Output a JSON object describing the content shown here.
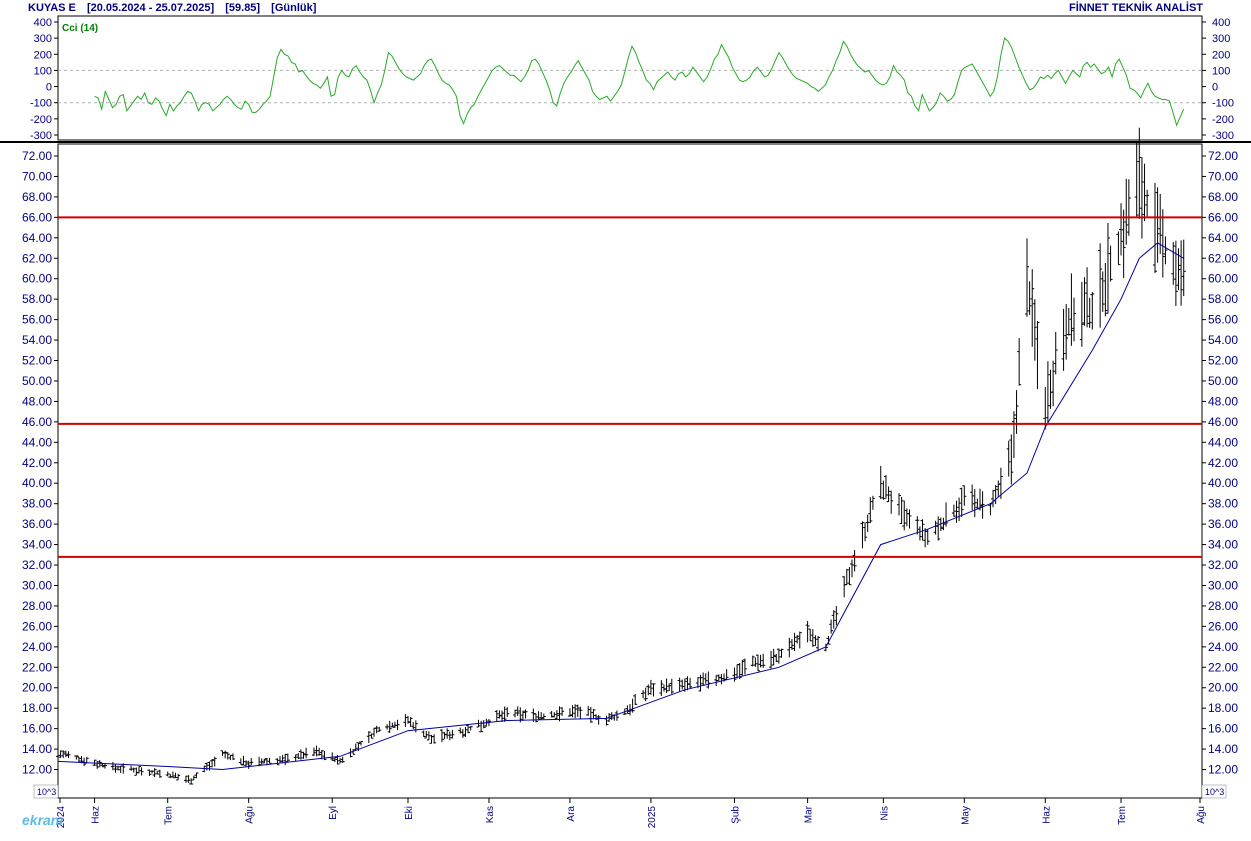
{
  "header": {
    "symbol": "KUYAS E",
    "range": "[20.05.2024 - 25.07.2025]",
    "last": "[59.85]",
    "period": "[Günlük]",
    "provider": "FİNNET TEKNİK ANALİST"
  },
  "watermark": "ekranı",
  "colors": {
    "axis_text": "#000080",
    "cci_line": "#2aa82a",
    "moving_average": "#0000a0",
    "bars": "#000000",
    "support_lines": "#d00000",
    "grid": "#b0b0b0"
  },
  "chart_data": [
    {
      "type": "line",
      "title": "Cci (14)",
      "ylim": [
        -300,
        400
      ],
      "y_ticks": [
        400,
        300,
        200,
        100,
        0,
        -100,
        -200,
        -300
      ],
      "y_tick_labels": [
        "400",
        "300",
        "200",
        "100",
        "0",
        "-100",
        "-200",
        "-300"
      ],
      "grid": true,
      "series": [
        {
          "name": "Cci (14)",
          "x_start": "2024-06-03",
          "x_end": "2025-07-25",
          "values": [
            -60,
            -70,
            -140,
            -30,
            -80,
            -130,
            -110,
            -60,
            -50,
            -150,
            -120,
            -90,
            -60,
            -80,
            -40,
            -100,
            -110,
            -70,
            -90,
            -140,
            -180,
            -110,
            -150,
            -120,
            -100,
            -60,
            -30,
            -40,
            -90,
            -150,
            -110,
            -100,
            -110,
            -150,
            -130,
            -110,
            -80,
            -60,
            -80,
            -110,
            -130,
            -140,
            -90,
            -110,
            -160,
            -160,
            -140,
            -110,
            -90,
            -60,
            60,
            180,
            230,
            200,
            190,
            150,
            140,
            90,
            100,
            70,
            40,
            20,
            10,
            -10,
            20,
            60,
            -60,
            -50,
            60,
            100,
            70,
            60,
            110,
            130,
            90,
            60,
            40,
            -20,
            -100,
            -40,
            10,
            100,
            210,
            190,
            150,
            110,
            80,
            60,
            50,
            40,
            60,
            80,
            130,
            160,
            170,
            130,
            80,
            40,
            20,
            10,
            -20,
            -60,
            -180,
            -230,
            -170,
            -130,
            -110,
            -60,
            -20,
            20,
            60,
            100,
            120,
            130,
            110,
            90,
            70,
            70,
            50,
            30,
            60,
            100,
            160,
            170,
            140,
            90,
            40,
            -20,
            -100,
            -120,
            -40,
            20,
            60,
            90,
            130,
            160,
            120,
            80,
            40,
            -30,
            -60,
            -80,
            -70,
            -60,
            -90,
            -60,
            -30,
            10,
            90,
            180,
            250,
            210,
            150,
            100,
            40,
            20,
            -20,
            30,
            50,
            70,
            90,
            60,
            40,
            80,
            90,
            60,
            80,
            120,
            90,
            60,
            30,
            60,
            110,
            170,
            200,
            260,
            220,
            180,
            120,
            80,
            40,
            30,
            40,
            60,
            100,
            120,
            90,
            60,
            70,
            110,
            160,
            210,
            180,
            140,
            100,
            70,
            50,
            40,
            30,
            20,
            0,
            -10,
            -30,
            -10,
            10,
            60,
            100,
            160,
            210,
            280,
            250,
            200,
            160,
            130,
            110,
            90,
            100,
            70,
            40,
            20,
            10,
            20,
            60,
            130,
            90,
            70,
            40,
            -40,
            -60,
            -120,
            -150,
            -50,
            -100,
            -150,
            -130,
            -100,
            -40,
            -60,
            -90,
            -80,
            -50,
            30,
            100,
            120,
            130,
            140,
            100,
            60,
            20,
            -20,
            -60,
            -30,
            60,
            200,
            300,
            280,
            240,
            180,
            120,
            70,
            20,
            -20,
            -10,
            20,
            60,
            50,
            70,
            50,
            80,
            100,
            60,
            20,
            60,
            100,
            80,
            60,
            130,
            150,
            120,
            140,
            110,
            80,
            90,
            120,
            60,
            140,
            170,
            120,
            70,
            -10,
            -20,
            -40,
            -70,
            -20,
            20,
            -30,
            -60,
            -70,
            -80,
            -80,
            -90,
            -160,
            -240,
            -190,
            -140
          ]
        }
      ]
    },
    {
      "type": "candlestick",
      "ylim": [
        10,
        73
      ],
      "y_ticks": [
        72,
        70,
        68,
        66,
        64,
        62,
        60,
        58,
        56,
        54,
        52,
        50,
        48,
        46,
        44,
        42,
        40,
        38,
        36,
        34,
        32,
        30,
        28,
        26,
        24,
        22,
        20,
        18,
        16,
        14,
        12,
        10
      ],
      "y_tick_labels": [
        "72.00",
        "70.00",
        "68.00",
        "66.00",
        "64.00",
        "62.00",
        "60.00",
        "58.00",
        "56.00",
        "54.00",
        "52.00",
        "50.00",
        "48.00",
        "46.00",
        "44.00",
        "42.00",
        "40.00",
        "38.00",
        "36.00",
        "34.00",
        "32.00",
        "30.00",
        "28.00",
        "26.00",
        "24.00",
        "22.00",
        "20.00",
        "18.00",
        "16.00",
        "14.00",
        "12.00",
        "10"
      ],
      "unit_label": "10^3",
      "x_labels": [
        "2024",
        "Haz",
        "Tem",
        "Ağu",
        "Eyl",
        "Eki",
        "Kas",
        "Ara",
        "2025",
        "Şub",
        "Mar",
        "Nis",
        "May",
        "Haz",
        "Tem",
        "Ağu"
      ],
      "x_label_dates": [
        "2024-05-20",
        "2024-06-03",
        "2024-07-01",
        "2024-08-01",
        "2024-09-02",
        "2024-10-01",
        "2024-11-01",
        "2024-12-02",
        "2025-01-02",
        "2025-02-03",
        "2025-03-03",
        "2025-04-01",
        "2025-05-02",
        "2025-06-02",
        "2025-07-01",
        "2025-08-01"
      ],
      "horizontal_lines": [
        66.0,
        45.8,
        32.8
      ],
      "grid": false,
      "price_anchors": {
        "dates": [
          "2024-05-20",
          "2024-06-10",
          "2024-06-25",
          "2024-07-10",
          "2024-07-22",
          "2024-08-01",
          "2024-08-15",
          "2024-08-27",
          "2024-09-05",
          "2024-09-20",
          "2024-10-01",
          "2024-10-10",
          "2024-10-25",
          "2024-11-08",
          "2024-11-22",
          "2024-12-05",
          "2024-12-16",
          "2024-12-23",
          "2025-01-02",
          "2025-01-15",
          "2025-01-30",
          "2025-02-10",
          "2025-02-20",
          "2025-03-03",
          "2025-03-10",
          "2025-03-20",
          "2025-03-31",
          "2025-04-08",
          "2025-04-18",
          "2025-05-02",
          "2025-05-12",
          "2025-05-20",
          "2025-05-26",
          "2025-06-02",
          "2025-06-10",
          "2025-06-20",
          "2025-07-01",
          "2025-07-08",
          "2025-07-15",
          "2025-07-25"
        ],
        "close": [
          13.6,
          12.2,
          11.8,
          11.0,
          13.5,
          12.6,
          13.0,
          13.8,
          12.8,
          16.0,
          16.8,
          15.0,
          16.0,
          17.5,
          17.2,
          17.8,
          16.8,
          17.6,
          20.0,
          20.2,
          21.0,
          22.5,
          23.0,
          25.5,
          24.0,
          32.0,
          40.0,
          37.0,
          34.5,
          38.5,
          37.5,
          42.0,
          60.0,
          48.0,
          56.0,
          57.0,
          64.0,
          70.0,
          64.0,
          59.85
        ]
      },
      "moving_average": {
        "dates": [
          "2024-05-20",
          "2024-07-01",
          "2024-07-22",
          "2024-09-05",
          "2024-10-01",
          "2024-11-08",
          "2024-12-16",
          "2025-01-15",
          "2025-02-20",
          "2025-03-10",
          "2025-03-31",
          "2025-04-18",
          "2025-05-12",
          "2025-05-26",
          "2025-06-02",
          "2025-06-20",
          "2025-07-01",
          "2025-07-08",
          "2025-07-15",
          "2025-07-25"
        ],
        "values": [
          12.8,
          12.3,
          12.0,
          13.3,
          15.8,
          16.8,
          17.0,
          19.8,
          22.0,
          24.0,
          34.0,
          35.5,
          38.0,
          41.0,
          45.5,
          53.0,
          58.0,
          62.0,
          63.5,
          62.0
        ]
      }
    }
  ]
}
